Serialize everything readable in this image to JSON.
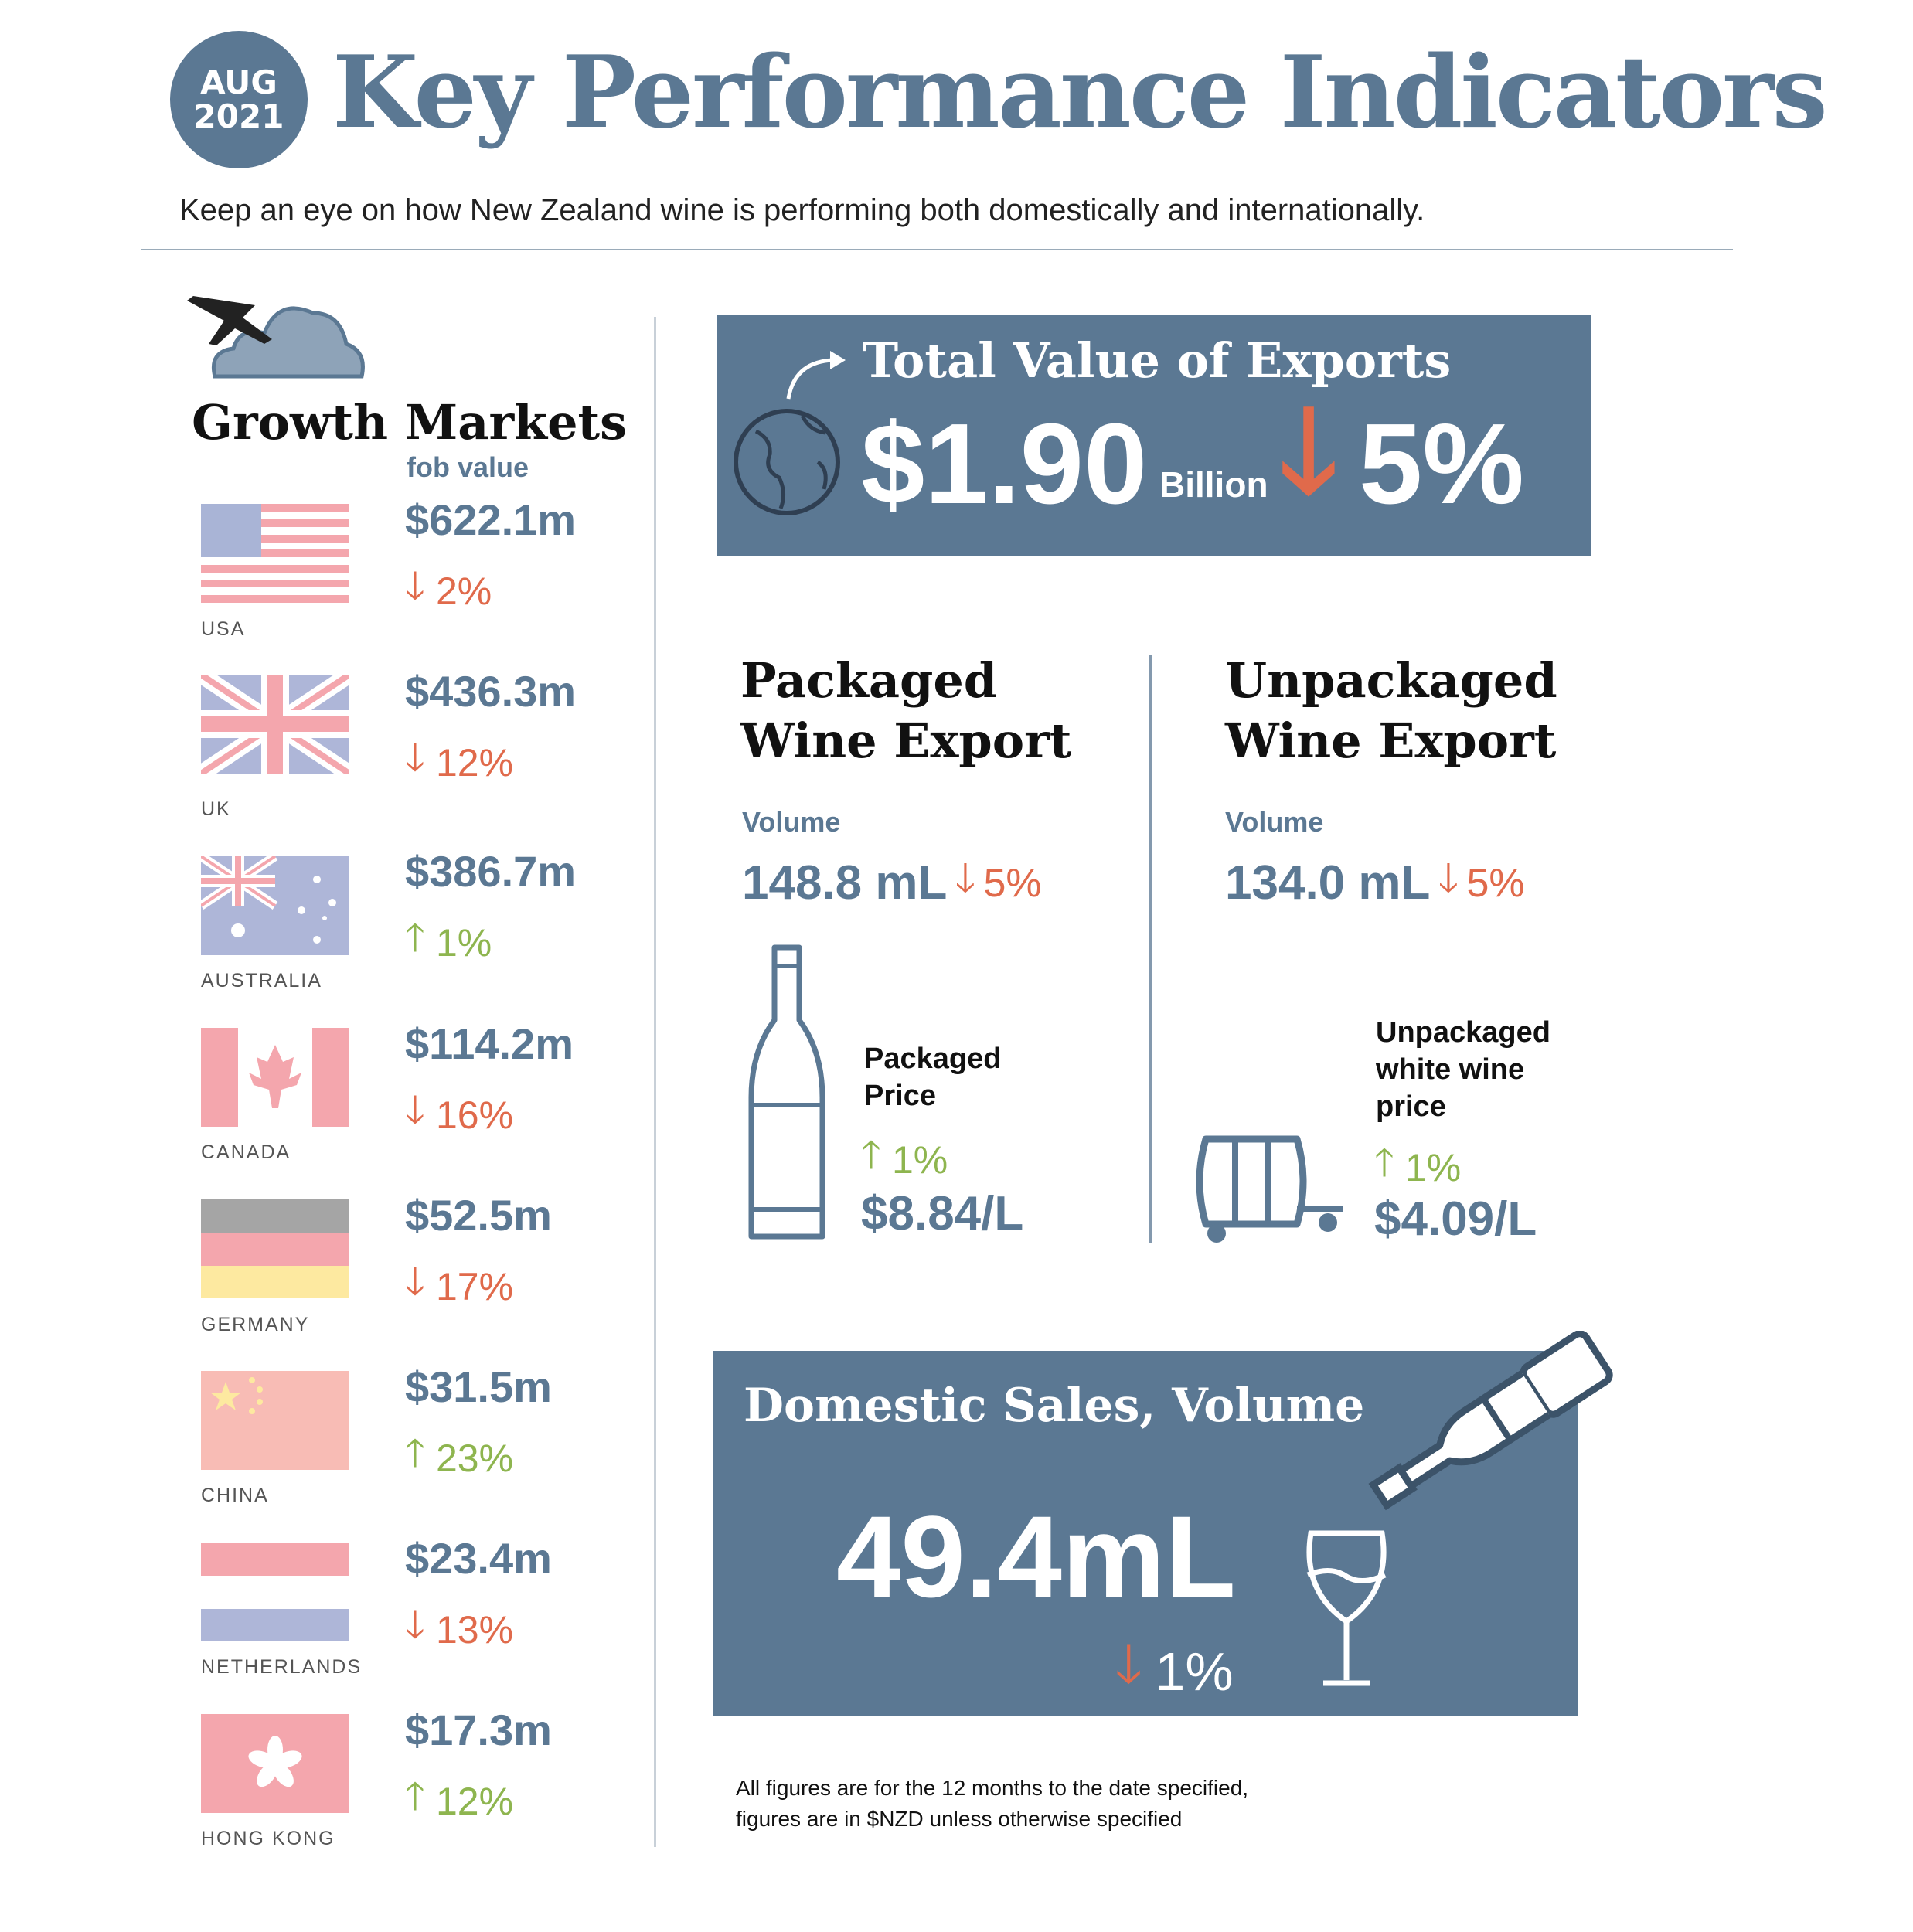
{
  "header": {
    "badge_month": "AUG",
    "badge_year": "2021",
    "title": "Key Performance Indicators",
    "subtitle": "Keep an eye on how New Zealand wine is performing both domestically and internationally."
  },
  "growth_markets": {
    "title": "Growth Markets",
    "value_label": "fob value",
    "markets": [
      {
        "country": "USA",
        "value": "$622.1m",
        "change": "2%",
        "direction": "down"
      },
      {
        "country": "UK",
        "value": "$436.3m",
        "change": "12%",
        "direction": "down"
      },
      {
        "country": "AUSTRALIA",
        "value": "$386.7m",
        "change": "1%",
        "direction": "up"
      },
      {
        "country": "CANADA",
        "value": "$114.2m",
        "change": "16%",
        "direction": "down"
      },
      {
        "country": "GERMANY",
        "value": "$52.5m",
        "change": "17%",
        "direction": "down"
      },
      {
        "country": "CHINA",
        "value": "$31.5m",
        "change": "23%",
        "direction": "up"
      },
      {
        "country": "NETHERLANDS",
        "value": "$23.4m",
        "change": "13%",
        "direction": "down"
      },
      {
        "country": "HONG KONG",
        "value": "$17.3m",
        "change": "12%",
        "direction": "up"
      }
    ]
  },
  "total_exports": {
    "title": "Total Value of Exports",
    "value": "$1.90",
    "unit": "Billion",
    "change": "5%",
    "direction": "down"
  },
  "packaged": {
    "title_line1": "Packaged",
    "title_line2": "Wine Export",
    "volume_label": "Volume",
    "volume": "148.8 mL",
    "volume_change": "5%",
    "price_label_line1": "Packaged",
    "price_label_line2": "Price",
    "price_change": "1%",
    "price": "$8.84/L"
  },
  "unpackaged": {
    "title_line1": "Unpackaged",
    "title_line2": "Wine Export",
    "volume_label": "Volume",
    "volume": "134.0 mL",
    "volume_change": "5%",
    "price_label_line1": "Unpackaged",
    "price_label_line2": "white wine",
    "price_label_line3": "price",
    "price_change": "1%",
    "price": "$4.09/L"
  },
  "domestic": {
    "title": "Domestic Sales, Volume",
    "value": "49.4mL",
    "change": "1%",
    "direction": "down"
  },
  "footnote": {
    "line1": "All figures are for the 12 months to the date specified,",
    "line2": "figures are in $NZD unless otherwise specified"
  },
  "colors": {
    "brand": "#5b7893",
    "down": "#e06a4b",
    "up": "#8eb54f"
  }
}
